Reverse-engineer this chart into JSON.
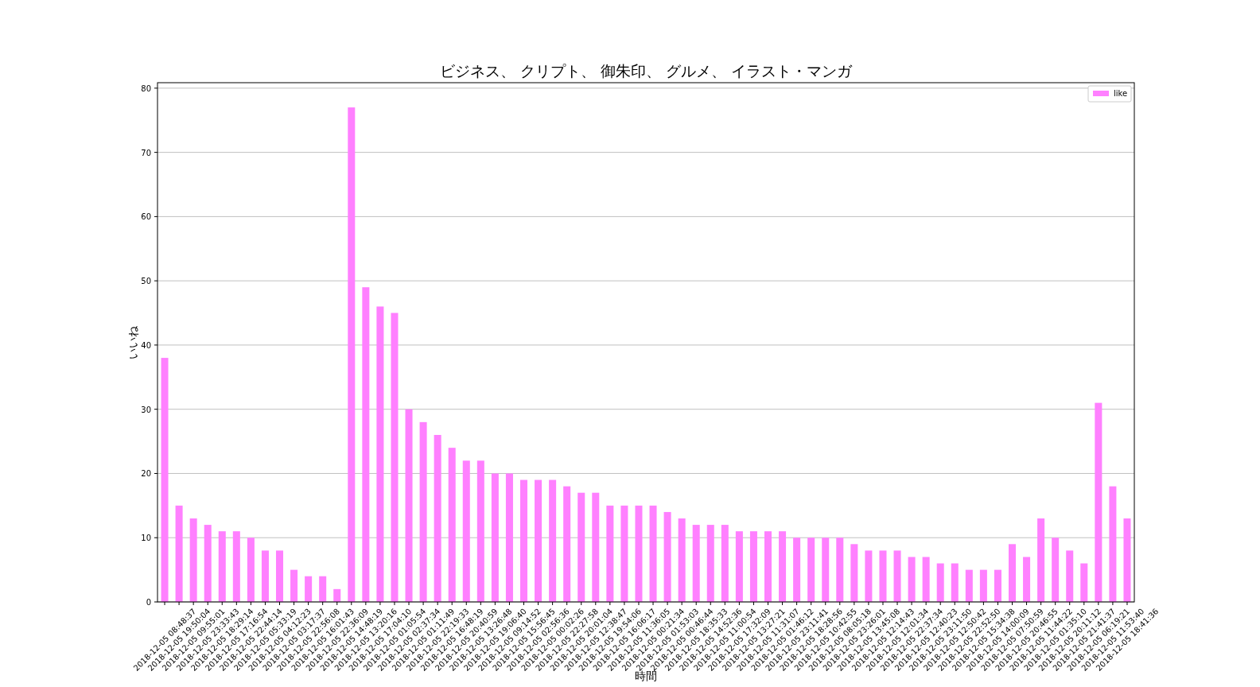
{
  "chart_data": {
    "type": "bar",
    "title": "ビジネス、 クリプト、 御朱印、 グルメ、 イラスト・マンガ",
    "xlabel": "時間",
    "ylabel": "いいね",
    "categories": [
      "2018-12-05 08:48:37",
      "2018-12-05 19:50:04",
      "2018-12-05 09:55:01",
      "2018-12-05 23:33:43",
      "2018-12-05 18:29:14",
      "2018-12-05 17:16:54",
      "2018-12-05 22:44:14",
      "2018-12-05 05:33:19",
      "2018-12-05 04:12:23",
      "2018-12-05 03:17:37",
      "2018-12-05 22:56:08",
      "2018-12-05 16:01:43",
      "2018-12-05 22:36:09",
      "2018-12-05 14:48:19",
      "2018-12-05 13:20:16",
      "2018-12-05 17:04:10",
      "2018-12-05 01:05:54",
      "2018-12-05 02:37:34",
      "2018-12-05 01:11:49",
      "2018-12-05 22:19:33",
      "2018-12-05 16:48:19",
      "2018-12-05 20:40:59",
      "2018-12-05 13:26:48",
      "2018-12-05 19:06:40",
      "2018-12-05 09:14:52",
      "2018-12-05 15:56:45",
      "2018-12-05 02:56:36",
      "2018-12-05 00:02:26",
      "2018-12-05 22:27:58",
      "2018-12-05 20:01:04",
      "2018-12-05 12:38:47",
      "2018-12-05 19:54:06",
      "2018-12-05 16:06:17",
      "2018-12-05 11:36:05",
      "2018-12-05 00:21:34",
      "2018-12-05 01:53:03",
      "2018-12-05 00:46:44",
      "2018-12-05 18:35:33",
      "2018-12-05 14:52:36",
      "2018-12-05 11:00:54",
      "2018-12-05 17:32:09",
      "2018-12-05 13:27:21",
      "2018-12-05 11:31:07",
      "2018-12-05 01:46:12",
      "2018-12-05 23:11:41",
      "2018-12-05 18:28:56",
      "2018-12-05 10:42:55",
      "2018-12-05 08:05:18",
      "2018-12-05 23:26:01",
      "2018-12-05 13:45:08",
      "2018-12-05 12:14:43",
      "2018-12-05 12:01:34",
      "2018-12-05 22:37:34",
      "2018-12-05 12:40:23",
      "2018-12-05 23:11:50",
      "2018-12-05 12:50:42",
      "2018-12-05 22:52:50",
      "2018-12-05 15:34:38",
      "2018-12-05 14:00:09",
      "2018-12-05 07:50:59",
      "2018-12-05 20:46:55",
      "2018-12-05 11:44:22",
      "2018-12-05 01:35:10",
      "2018-12-05 20:11:12",
      "2018-12-05 21:41:37",
      "2018-12-05 06:19:21",
      "2018-12-05 11:53:40",
      "2018-12-05 18:41:36"
    ],
    "series": [
      {
        "name": "like",
        "color": "#ff80ff",
        "values": [
          38,
          15,
          13,
          12,
          11,
          11,
          10,
          8,
          8,
          5,
          4,
          4,
          2,
          77,
          49,
          46,
          45,
          30,
          28,
          26,
          24,
          22,
          22,
          20,
          20,
          19,
          19,
          19,
          18,
          17,
          17,
          15,
          15,
          15,
          15,
          14,
          13,
          12,
          12,
          12,
          11,
          11,
          11,
          11,
          10,
          10,
          10,
          10,
          9,
          8,
          8,
          8,
          7,
          7,
          6,
          6,
          5,
          5,
          5,
          9,
          7,
          13,
          10,
          8,
          6,
          31,
          18,
          13
        ]
      }
    ],
    "ylim": [
      0,
      80.85
    ],
    "yticks": [
      0,
      10,
      20,
      30,
      40,
      50,
      60,
      70,
      80
    ],
    "grid": "y",
    "legend": "top right"
  }
}
